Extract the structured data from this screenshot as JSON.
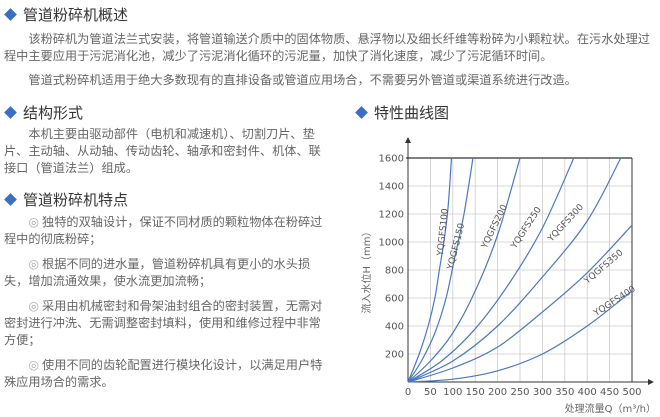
{
  "overview": {
    "heading": "管道粉碎机概述",
    "p1": "该粉碎机为管道法兰式安装，将管道输送介质中的固体物质、悬浮物以及细长纤维等粉碎为小颗粒状。在污水处理过程中主要应用于污泥消化池，减少了污泥消化循环的污泥量，加快了消化速度，减少了污泥循环时间。",
    "p2": "管道式粉碎机适用于绝大多数现有的直排设备或管道应用场合，不需要另外管道或渠道系统进行改造。"
  },
  "structure": {
    "heading": "结构形式",
    "text": "本机主要由驱动部件（电机和减速机）、切割刀片、垫片、主动轴、从动轴、传动齿轮、轴承和密封件、机体、联接口（管道法兰）组成。"
  },
  "features": {
    "heading": "管道粉碎机特点",
    "bullet": "◎",
    "items": [
      "独特的双轴设计，保证不同材质的颗粒物体在粉碎过程中的彻底粉碎；",
      "根据不同的进水量，管道粉碎机具有更小的水头损失，增加流通效果，使水流更加流畅；",
      "采用由机械密封和骨架油封组合的密封装置，无需对密封进行冲洗、无需调整密封填料，使用和维修过程中非常方便；",
      "使用不同的齿轮配置进行模块化设计，以满足用户特殊应用场合的需求。"
    ]
  },
  "chart_section": {
    "heading": "特性曲线图"
  },
  "chart_data": {
    "type": "line",
    "xlabel": "处理流量Q（m³/h）",
    "ylabel": "流入水位H（mm）",
    "xlim": [
      0,
      500
    ],
    "ylim": [
      0,
      1600
    ],
    "xticks": [
      "0",
      "50",
      "100",
      "150",
      "200",
      "250",
      "300",
      "350",
      "400",
      "450",
      "500"
    ],
    "yticks": [
      "200",
      "400",
      "600",
      "800",
      "1000",
      "1200",
      "1400",
      "1600"
    ],
    "grid": true,
    "color": "#4a78c0",
    "series": [
      {
        "name": "YQGFS100",
        "points": [
          [
            0,
            0
          ],
          [
            25,
            200
          ],
          [
            45,
            400
          ],
          [
            60,
            600
          ],
          [
            70,
            800
          ],
          [
            80,
            1000
          ],
          [
            88,
            1200
          ],
          [
            93,
            1400
          ],
          [
            97,
            1600
          ]
        ]
      },
      {
        "name": "YQGFS150",
        "points": [
          [
            0,
            0
          ],
          [
            30,
            150
          ],
          [
            60,
            350
          ],
          [
            85,
            600
          ],
          [
            105,
            900
          ],
          [
            125,
            1200
          ],
          [
            145,
            1600
          ]
        ]
      },
      {
        "name": "YQGFS200",
        "points": [
          [
            0,
            0
          ],
          [
            50,
            150
          ],
          [
            100,
            350
          ],
          [
            150,
            650
          ],
          [
            200,
            1050
          ],
          [
            250,
            1600
          ]
        ]
      },
      {
        "name": "YQGFS250",
        "points": [
          [
            0,
            0
          ],
          [
            75,
            150
          ],
          [
            150,
            380
          ],
          [
            225,
            700
          ],
          [
            300,
            1100
          ],
          [
            370,
            1600
          ]
        ]
      },
      {
        "name": "YQGFS300",
        "points": [
          [
            0,
            0
          ],
          [
            100,
            150
          ],
          [
            200,
            400
          ],
          [
            300,
            750
          ],
          [
            400,
            1150
          ],
          [
            475,
            1600
          ]
        ]
      },
      {
        "name": "YQGFS350",
        "points": [
          [
            0,
            0
          ],
          [
            100,
            100
          ],
          [
            200,
            250
          ],
          [
            300,
            500
          ],
          [
            400,
            780
          ],
          [
            500,
            1120
          ]
        ]
      },
      {
        "name": "YQGFS400",
        "points": [
          [
            0,
            0
          ],
          [
            100,
            20
          ],
          [
            200,
            80
          ],
          [
            300,
            200
          ],
          [
            400,
            400
          ],
          [
            500,
            650
          ]
        ]
      }
    ]
  }
}
